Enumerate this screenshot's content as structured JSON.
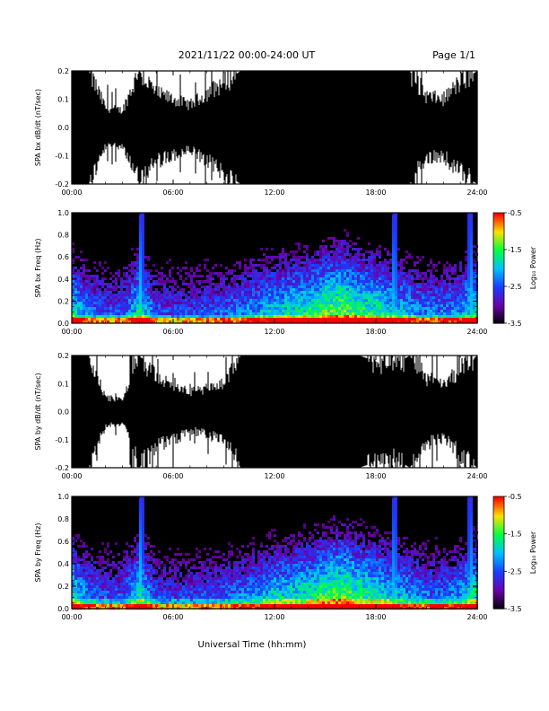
{
  "header": {
    "title": "2021/11/22  00:00-24:00 UT",
    "page": "Page 1/1"
  },
  "x_axis_label": "Universal Time (hh:mm)",
  "x_ticks": [
    "00:00",
    "06:00",
    "12:00",
    "18:00",
    "24:00"
  ],
  "colorbar": {
    "label": "Log₁₀ Power",
    "ticks": [
      "-0.5",
      "-1.5",
      "-2.5",
      "-3.5"
    ],
    "range": [
      -3.5,
      -0.5
    ],
    "colors": [
      "#000000",
      "#6a00a8",
      "#1a3cff",
      "#00c0ff",
      "#00ff40",
      "#ffe000",
      "#ff0000"
    ]
  },
  "chart_data": [
    {
      "type": "line",
      "ylabel": "SPA bx dB/dt (nT/sec)",
      "ylim": [
        -0.2,
        0.2
      ],
      "xlim": [
        0,
        24
      ],
      "yticks": [
        "-0.2",
        "-0.1",
        "0.0",
        "0.1",
        "0.2"
      ],
      "series": [
        {
          "x": [
            0,
            1,
            2,
            3,
            4,
            5,
            6,
            7,
            8,
            9,
            10,
            11,
            12,
            13,
            14,
            15,
            16,
            17,
            18,
            19,
            20,
            21,
            22,
            23,
            24
          ],
          "upper": [
            0.2,
            0.2,
            0.07,
            0.06,
            0.2,
            0.12,
            0.1,
            0.08,
            0.12,
            0.16,
            0.2,
            0.2,
            0.2,
            0.2,
            0.2,
            0.2,
            0.2,
            0.2,
            0.2,
            0.2,
            0.2,
            0.11,
            0.1,
            0.16,
            0.2
          ],
          "lower": [
            -0.2,
            -0.2,
            -0.07,
            -0.06,
            -0.2,
            -0.12,
            -0.1,
            -0.08,
            -0.12,
            -0.16,
            -0.2,
            -0.2,
            -0.2,
            -0.2,
            -0.2,
            -0.2,
            -0.2,
            -0.2,
            -0.2,
            -0.2,
            -0.2,
            -0.11,
            -0.1,
            -0.16,
            -0.2
          ]
        }
      ]
    },
    {
      "type": "heatmap",
      "ylabel": "SPA bx Freq (Hz)",
      "ylim": [
        0,
        1.0
      ],
      "xlim": [
        0,
        24
      ],
      "yticks": [
        "0.0",
        "0.2",
        "0.4",
        "0.6",
        "0.8",
        "1.0"
      ],
      "bursts_hr": [
        4.1,
        19.1,
        23.6
      ],
      "activity": [
        0.6,
        0.3,
        0.2,
        0.2,
        0.6,
        0.2,
        0.15,
        0.15,
        0.2,
        0.25,
        0.3,
        0.4,
        0.5,
        0.55,
        0.6,
        0.7,
        0.75,
        0.65,
        0.6,
        0.5,
        0.4,
        0.3,
        0.3,
        0.4,
        0.6
      ]
    },
    {
      "type": "line",
      "ylabel": "SPA by dB/dt (nT/sec)",
      "ylim": [
        -0.2,
        0.2
      ],
      "xlim": [
        0,
        24
      ],
      "yticks": [
        "-0.2",
        "-0.1",
        "0.0",
        "0.1",
        "0.2"
      ],
      "series": [
        {
          "x": [
            0,
            1,
            2,
            3,
            4,
            5,
            6,
            7,
            8,
            9,
            10,
            11,
            12,
            13,
            14,
            15,
            16,
            17,
            18,
            19,
            20,
            21,
            22,
            23,
            24
          ],
          "upper": [
            0.2,
            0.2,
            0.05,
            0.04,
            0.2,
            0.12,
            0.1,
            0.07,
            0.08,
            0.1,
            0.2,
            0.2,
            0.2,
            0.2,
            0.2,
            0.2,
            0.2,
            0.2,
            0.18,
            0.16,
            0.2,
            0.12,
            0.09,
            0.15,
            0.2
          ],
          "lower": [
            -0.2,
            -0.2,
            -0.05,
            -0.04,
            -0.2,
            -0.12,
            -0.1,
            -0.07,
            -0.08,
            -0.1,
            -0.2,
            -0.2,
            -0.2,
            -0.2,
            -0.2,
            -0.2,
            -0.2,
            -0.2,
            -0.18,
            -0.16,
            -0.2,
            -0.12,
            -0.09,
            -0.15,
            -0.2
          ]
        }
      ]
    },
    {
      "type": "heatmap",
      "ylabel": "SPA by Freq (Hz)",
      "ylim": [
        0,
        1.0
      ],
      "xlim": [
        0,
        24
      ],
      "yticks": [
        "0.0",
        "0.2",
        "0.4",
        "0.6",
        "0.8",
        "1.0"
      ],
      "bursts_hr": [
        4.1,
        19.1,
        23.6
      ],
      "activity": [
        0.6,
        0.3,
        0.2,
        0.2,
        0.6,
        0.2,
        0.15,
        0.15,
        0.2,
        0.25,
        0.3,
        0.4,
        0.5,
        0.55,
        0.6,
        0.7,
        0.75,
        0.65,
        0.6,
        0.5,
        0.4,
        0.3,
        0.3,
        0.4,
        0.6
      ]
    }
  ]
}
